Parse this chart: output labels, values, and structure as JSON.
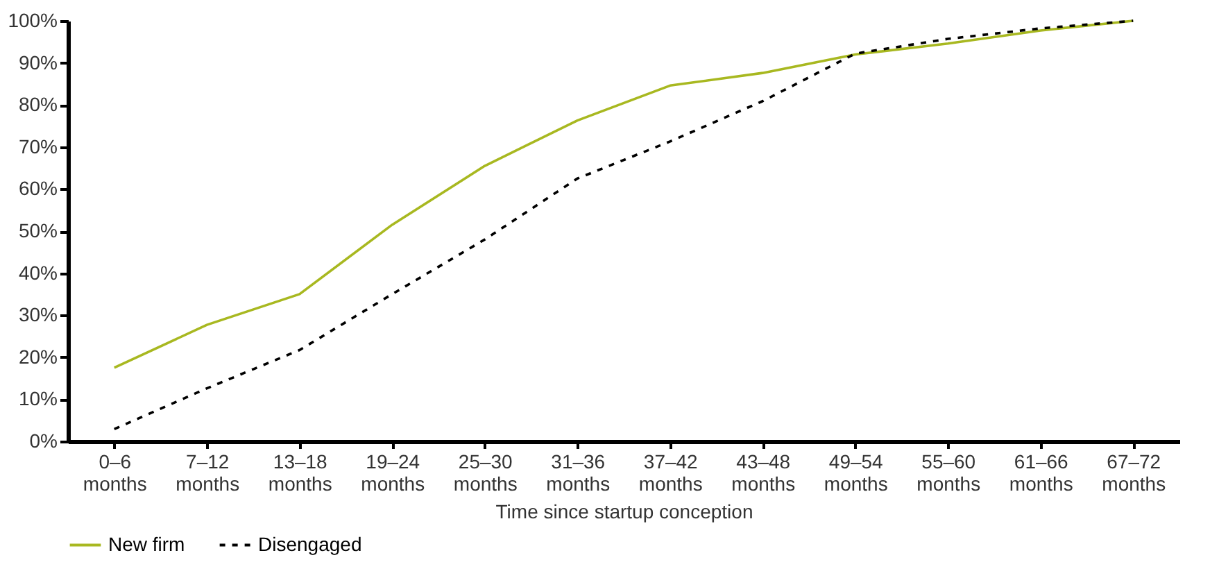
{
  "chart_data": {
    "type": "line",
    "xlabel": "Time since startup conception",
    "categories": [
      "0–6 months",
      "7–12 months",
      "13–18 months",
      "19–24 months",
      "25–30 months",
      "31–36 months",
      "37–42 months",
      "43–48 months",
      "49–54 months",
      "55–60 months",
      "61–66 months",
      "67–72 months"
    ],
    "series": [
      {
        "name": "New firm",
        "color": "#a8b820",
        "line_style": "solid",
        "values": [
          17.5,
          27.7,
          35,
          51.5,
          65.5,
          76.3,
          84.6,
          87.6,
          92,
          94.6,
          97.7,
          100
        ]
      },
      {
        "name": "Disengaged",
        "color": "#000000",
        "line_style": "dashed",
        "values": [
          2.9,
          12.6,
          21.7,
          35,
          48,
          62.5,
          71.3,
          80.9,
          92.2,
          95.7,
          98.2,
          100
        ]
      }
    ],
    "ylim": [
      0,
      100
    ],
    "yticks": [
      {
        "value": 0,
        "label": "0%"
      },
      {
        "value": 10,
        "label": "10%"
      },
      {
        "value": 20,
        "label": "20%"
      },
      {
        "value": 30,
        "label": "30%"
      },
      {
        "value": 40,
        "label": "40%"
      },
      {
        "value": 50,
        "label": "50%"
      },
      {
        "value": 60,
        "label": "60%"
      },
      {
        "value": 70,
        "label": "70%"
      },
      {
        "value": 80,
        "label": "80%"
      },
      {
        "value": 90,
        "label": "90%"
      },
      {
        "value": 100,
        "label": "100%"
      }
    ],
    "grid": false,
    "legend": "bottom left"
  }
}
